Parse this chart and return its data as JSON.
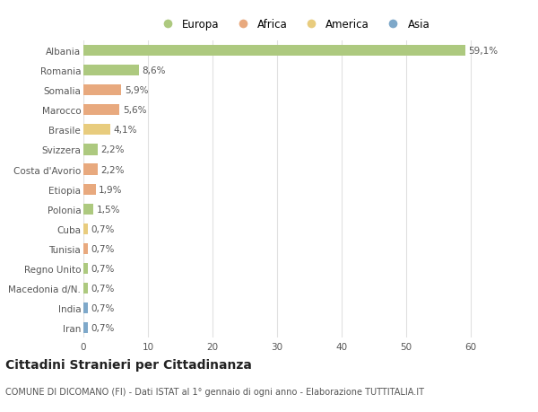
{
  "countries": [
    "Albania",
    "Romania",
    "Somalia",
    "Marocco",
    "Brasile",
    "Svizzera",
    "Costa d'Avorio",
    "Etiopia",
    "Polonia",
    "Cuba",
    "Tunisia",
    "Regno Unito",
    "Macedonia d/N.",
    "India",
    "Iran"
  ],
  "values": [
    59.1,
    8.6,
    5.9,
    5.6,
    4.1,
    2.2,
    2.2,
    1.9,
    1.5,
    0.7,
    0.7,
    0.7,
    0.7,
    0.7,
    0.7
  ],
  "labels": [
    "59,1%",
    "8,6%",
    "5,9%",
    "5,6%",
    "4,1%",
    "2,2%",
    "2,2%",
    "1,9%",
    "1,5%",
    "0,7%",
    "0,7%",
    "0,7%",
    "0,7%",
    "0,7%",
    "0,7%"
  ],
  "continents": [
    "Europa",
    "Europa",
    "Africa",
    "Africa",
    "America",
    "Europa",
    "Africa",
    "Africa",
    "Europa",
    "America",
    "Africa",
    "Europa",
    "Europa",
    "Asia",
    "Asia"
  ],
  "continent_colors": {
    "Europa": "#adc97f",
    "Africa": "#e8a97e",
    "America": "#e8cc7e",
    "Asia": "#7ea8c9"
  },
  "legend_order": [
    "Europa",
    "Africa",
    "America",
    "Asia"
  ],
  "title": "Cittadini Stranieri per Cittadinanza",
  "subtitle": "COMUNE DI DICOMANO (FI) - Dati ISTAT al 1° gennaio di ogni anno - Elaborazione TUTTITALIA.IT",
  "xlim": [
    0,
    65
  ],
  "xticks": [
    0,
    10,
    20,
    30,
    40,
    50,
    60
  ],
  "background_color": "#ffffff",
  "grid_color": "#e0e0e0",
  "bar_height": 0.55,
  "label_fontsize": 7.5,
  "tick_fontsize": 7.5,
  "title_fontsize": 10,
  "subtitle_fontsize": 7
}
